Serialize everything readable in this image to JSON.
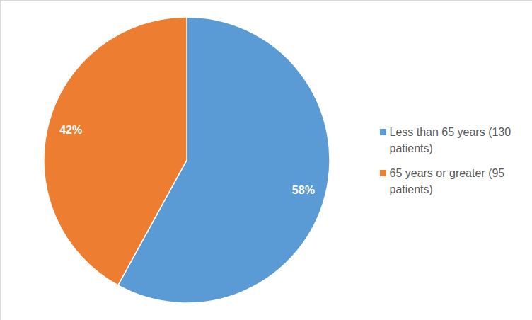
{
  "chart_data": {
    "type": "pie",
    "categories": [
      "Less than 65 years (130 patients)",
      "65 years or greater (95 patients)"
    ],
    "values": [
      58,
      42
    ],
    "value_labels": [
      "58%",
      "42%"
    ],
    "colors": [
      "#5b9bd5",
      "#ed7d31"
    ],
    "data_labels": true,
    "legend": "right"
  }
}
